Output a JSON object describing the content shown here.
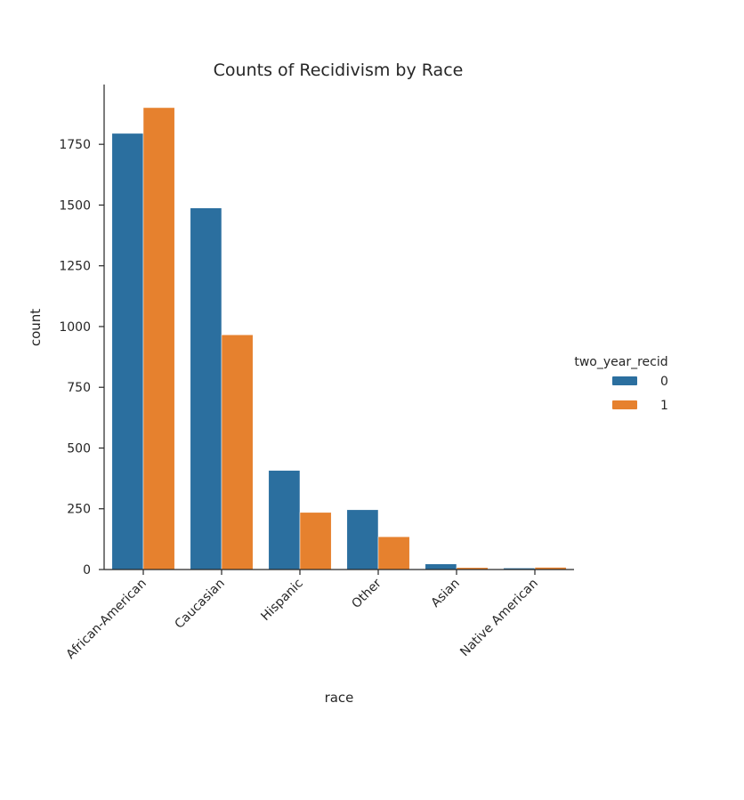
{
  "chart_data": {
    "type": "bar",
    "title": "Counts of Recidivism by Race",
    "xlabel": "race",
    "ylabel": "count",
    "categories": [
      "African-American",
      "Caucasian",
      "Hispanic",
      "Other",
      "Asian",
      "Native American"
    ],
    "series": [
      {
        "name": "0",
        "color": "#2b6f9f",
        "values": [
          1795,
          1488,
          408,
          246,
          23,
          6
        ]
      },
      {
        "name": "1",
        "color": "#e6812e",
        "values": [
          1901,
          966,
          235,
          135,
          8,
          9
        ]
      }
    ],
    "yticks": [
      0,
      250,
      500,
      750,
      1000,
      1250,
      1500,
      1750
    ],
    "ytick_labels": [
      "0",
      "250",
      "500",
      "750",
      "1000",
      "1250",
      "1500",
      "1750"
    ],
    "ylim": [
      0,
      1996
    ],
    "legend": {
      "title": "two_year_recid",
      "position": "right",
      "entries": [
        "0",
        "1"
      ]
    },
    "grid": false
  }
}
